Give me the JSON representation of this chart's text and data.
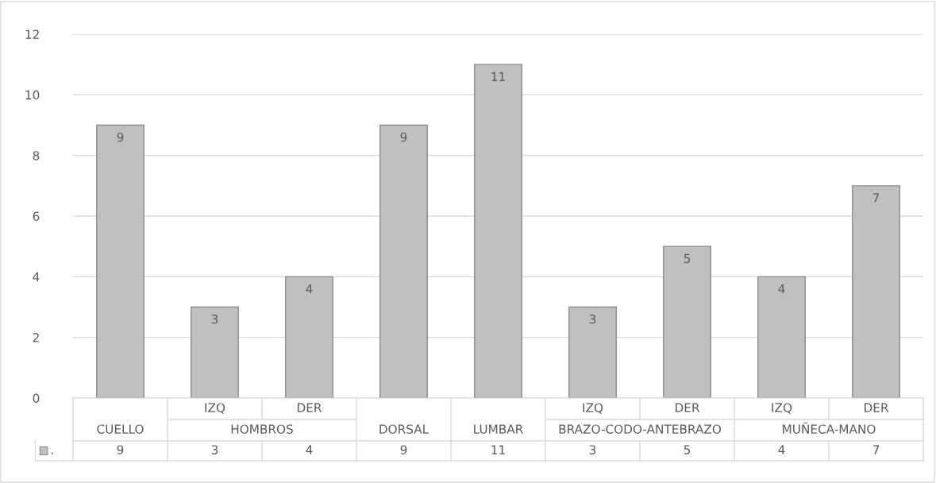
{
  "chart_data": {
    "type": "bar",
    "categories": [
      "CUELLO",
      "IZQ",
      "DER",
      "DORSAL",
      "LUMBAR",
      "IZQ",
      "DER",
      "IZQ",
      "DER"
    ],
    "series": [
      {
        "name": ".",
        "color": "#c0c0c0",
        "values": [
          9,
          3,
          4,
          9,
          11,
          3,
          5,
          4,
          7
        ]
      }
    ],
    "annotations": [
      "HOMBROS",
      "BRAZO-CODO-ANTEBRAZO",
      "MUÑECA-MANO",
      "9",
      "3",
      "4",
      "9",
      "11",
      "3",
      "5",
      "4",
      "7"
    ],
    "ylim": [
      0,
      12
    ],
    "yticks": [
      0,
      2,
      4,
      6,
      8,
      10,
      12
    ],
    "grid": "y",
    "data_labels": true,
    "legend": "bottom"
  }
}
